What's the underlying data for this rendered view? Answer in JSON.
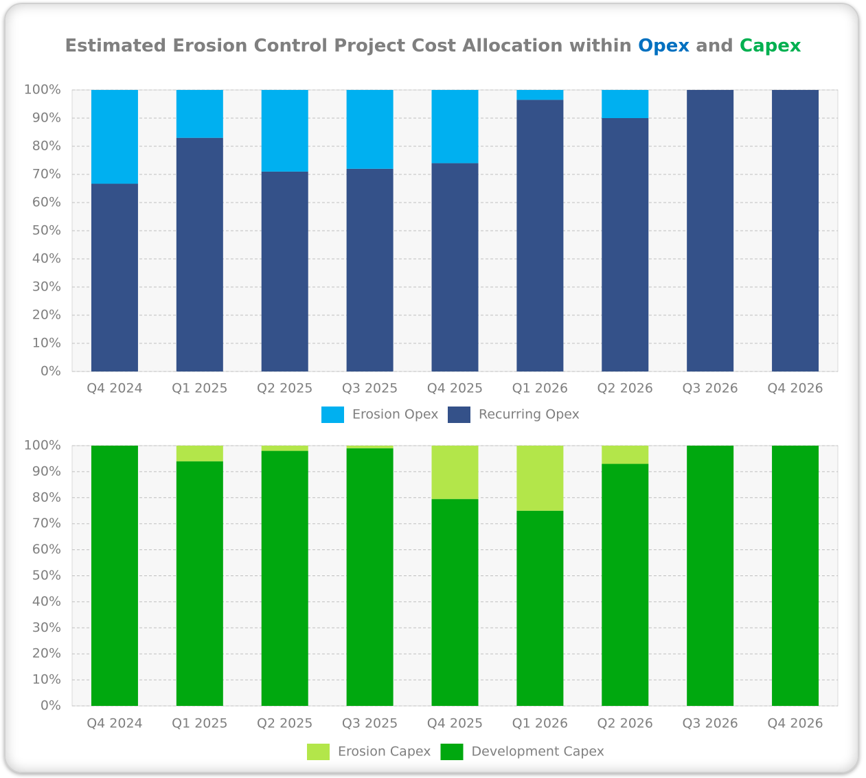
{
  "title": {
    "text": "Estimated Erosion Control Project Cost Allocation within",
    "opex": "Opex",
    "and": "and",
    "capex": "Capex",
    "opex_color": "#0070c0",
    "capex_color": "#00b050"
  },
  "chart_data": [
    {
      "type": "bar",
      "stacked": true,
      "grid": true,
      "legend": "bottom",
      "categories": [
        "Q4 2024",
        "Q1 2025",
        "Q2 2025",
        "Q3 2025",
        "Q4 2025",
        "Q1 2026",
        "Q2 2026",
        "Q3 2026",
        "Q4 2026"
      ],
      "series": [
        {
          "name": "Erosion Opex",
          "color": "#00b0f0",
          "values": [
            33.3,
            17,
            29,
            28,
            26,
            3.5,
            10,
            0,
            0
          ]
        },
        {
          "name": "Recurring Opex",
          "color": "#345189",
          "values": [
            66.7,
            83,
            71,
            72,
            74,
            96.5,
            90,
            100,
            100
          ]
        }
      ],
      "ylim": [
        0,
        100
      ],
      "yticks": [
        {
          "value": 0,
          "label": "0%"
        },
        {
          "value": 10,
          "label": "10%"
        },
        {
          "value": 20,
          "label": "20%"
        },
        {
          "value": 30,
          "label": "30%"
        },
        {
          "value": 40,
          "label": "40%"
        },
        {
          "value": 50,
          "label": "50%"
        },
        {
          "value": 60,
          "label": "60%"
        },
        {
          "value": 70,
          "label": "70%"
        },
        {
          "value": 80,
          "label": "80%"
        },
        {
          "value": 90,
          "label": "90%"
        },
        {
          "value": 100,
          "label": "100%"
        }
      ]
    },
    {
      "type": "bar",
      "stacked": true,
      "grid": true,
      "legend": "bottom",
      "categories": [
        "Q4 2024",
        "Q1 2025",
        "Q2 2025",
        "Q3 2025",
        "Q4 2025",
        "Q1 2026",
        "Q2 2026",
        "Q3 2026",
        "Q4 2026"
      ],
      "series": [
        {
          "name": "Erosion Capex",
          "color": "#b3e64a",
          "values": [
            0,
            6,
            2,
            1,
            20.5,
            25,
            7,
            0,
            0
          ]
        },
        {
          "name": "Development Capex",
          "color": "#00a80f",
          "values": [
            100,
            94,
            98,
            99,
            79.5,
            75,
            93,
            100,
            100
          ]
        }
      ],
      "ylim": [
        0,
        100
      ],
      "yticks": [
        {
          "value": 0,
          "label": "0%"
        },
        {
          "value": 10,
          "label": "10%"
        },
        {
          "value": 20,
          "label": "20%"
        },
        {
          "value": 30,
          "label": "30%"
        },
        {
          "value": 40,
          "label": "40%"
        },
        {
          "value": 50,
          "label": "50%"
        },
        {
          "value": 60,
          "label": "60%"
        },
        {
          "value": 70,
          "label": "70%"
        },
        {
          "value": 80,
          "label": "80%"
        },
        {
          "value": 90,
          "label": "90%"
        },
        {
          "value": 100,
          "label": "100%"
        }
      ]
    }
  ]
}
